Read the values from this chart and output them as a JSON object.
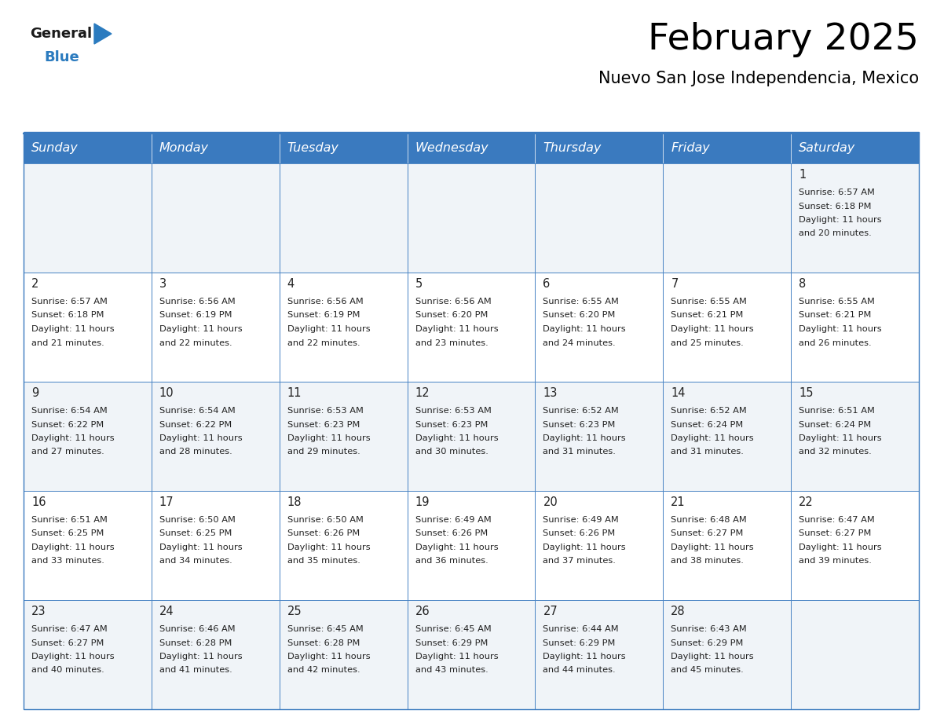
{
  "title": "February 2025",
  "subtitle": "Nuevo San Jose Independencia, Mexico",
  "header_color": "#3a7abf",
  "header_text_color": "#ffffff",
  "cell_bg_even": "#f0f4f8",
  "cell_bg_odd": "#ffffff",
  "border_color": "#3a7abf",
  "text_color": "#222222",
  "day_headers": [
    "Sunday",
    "Monday",
    "Tuesday",
    "Wednesday",
    "Thursday",
    "Friday",
    "Saturday"
  ],
  "title_fontsize": 34,
  "subtitle_fontsize": 15,
  "header_fontsize": 11.5,
  "cell_fontsize": 8.2,
  "day_num_fontsize": 10.5,
  "logo_general_color": "#1a1a1a",
  "logo_blue_color": "#2b7bbf",
  "logo_triangle_color": "#2b7bbf",
  "calendar": [
    [
      null,
      null,
      null,
      null,
      null,
      null,
      {
        "day": 1,
        "sunrise": "6:57 AM",
        "sunset": "6:18 PM",
        "daylight_line1": "Daylight: 11 hours",
        "daylight_line2": "and 20 minutes."
      }
    ],
    [
      {
        "day": 2,
        "sunrise": "6:57 AM",
        "sunset": "6:18 PM",
        "daylight_line1": "Daylight: 11 hours",
        "daylight_line2": "and 21 minutes."
      },
      {
        "day": 3,
        "sunrise": "6:56 AM",
        "sunset": "6:19 PM",
        "daylight_line1": "Daylight: 11 hours",
        "daylight_line2": "and 22 minutes."
      },
      {
        "day": 4,
        "sunrise": "6:56 AM",
        "sunset": "6:19 PM",
        "daylight_line1": "Daylight: 11 hours",
        "daylight_line2": "and 22 minutes."
      },
      {
        "day": 5,
        "sunrise": "6:56 AM",
        "sunset": "6:20 PM",
        "daylight_line1": "Daylight: 11 hours",
        "daylight_line2": "and 23 minutes."
      },
      {
        "day": 6,
        "sunrise": "6:55 AM",
        "sunset": "6:20 PM",
        "daylight_line1": "Daylight: 11 hours",
        "daylight_line2": "and 24 minutes."
      },
      {
        "day": 7,
        "sunrise": "6:55 AM",
        "sunset": "6:21 PM",
        "daylight_line1": "Daylight: 11 hours",
        "daylight_line2": "and 25 minutes."
      },
      {
        "day": 8,
        "sunrise": "6:55 AM",
        "sunset": "6:21 PM",
        "daylight_line1": "Daylight: 11 hours",
        "daylight_line2": "and 26 minutes."
      }
    ],
    [
      {
        "day": 9,
        "sunrise": "6:54 AM",
        "sunset": "6:22 PM",
        "daylight_line1": "Daylight: 11 hours",
        "daylight_line2": "and 27 minutes."
      },
      {
        "day": 10,
        "sunrise": "6:54 AM",
        "sunset": "6:22 PM",
        "daylight_line1": "Daylight: 11 hours",
        "daylight_line2": "and 28 minutes."
      },
      {
        "day": 11,
        "sunrise": "6:53 AM",
        "sunset": "6:23 PM",
        "daylight_line1": "Daylight: 11 hours",
        "daylight_line2": "and 29 minutes."
      },
      {
        "day": 12,
        "sunrise": "6:53 AM",
        "sunset": "6:23 PM",
        "daylight_line1": "Daylight: 11 hours",
        "daylight_line2": "and 30 minutes."
      },
      {
        "day": 13,
        "sunrise": "6:52 AM",
        "sunset": "6:23 PM",
        "daylight_line1": "Daylight: 11 hours",
        "daylight_line2": "and 31 minutes."
      },
      {
        "day": 14,
        "sunrise": "6:52 AM",
        "sunset": "6:24 PM",
        "daylight_line1": "Daylight: 11 hours",
        "daylight_line2": "and 31 minutes."
      },
      {
        "day": 15,
        "sunrise": "6:51 AM",
        "sunset": "6:24 PM",
        "daylight_line1": "Daylight: 11 hours",
        "daylight_line2": "and 32 minutes."
      }
    ],
    [
      {
        "day": 16,
        "sunrise": "6:51 AM",
        "sunset": "6:25 PM",
        "daylight_line1": "Daylight: 11 hours",
        "daylight_line2": "and 33 minutes."
      },
      {
        "day": 17,
        "sunrise": "6:50 AM",
        "sunset": "6:25 PM",
        "daylight_line1": "Daylight: 11 hours",
        "daylight_line2": "and 34 minutes."
      },
      {
        "day": 18,
        "sunrise": "6:50 AM",
        "sunset": "6:26 PM",
        "daylight_line1": "Daylight: 11 hours",
        "daylight_line2": "and 35 minutes."
      },
      {
        "day": 19,
        "sunrise": "6:49 AM",
        "sunset": "6:26 PM",
        "daylight_line1": "Daylight: 11 hours",
        "daylight_line2": "and 36 minutes."
      },
      {
        "day": 20,
        "sunrise": "6:49 AM",
        "sunset": "6:26 PM",
        "daylight_line1": "Daylight: 11 hours",
        "daylight_line2": "and 37 minutes."
      },
      {
        "day": 21,
        "sunrise": "6:48 AM",
        "sunset": "6:27 PM",
        "daylight_line1": "Daylight: 11 hours",
        "daylight_line2": "and 38 minutes."
      },
      {
        "day": 22,
        "sunrise": "6:47 AM",
        "sunset": "6:27 PM",
        "daylight_line1": "Daylight: 11 hours",
        "daylight_line2": "and 39 minutes."
      }
    ],
    [
      {
        "day": 23,
        "sunrise": "6:47 AM",
        "sunset": "6:27 PM",
        "daylight_line1": "Daylight: 11 hours",
        "daylight_line2": "and 40 minutes."
      },
      {
        "day": 24,
        "sunrise": "6:46 AM",
        "sunset": "6:28 PM",
        "daylight_line1": "Daylight: 11 hours",
        "daylight_line2": "and 41 minutes."
      },
      {
        "day": 25,
        "sunrise": "6:45 AM",
        "sunset": "6:28 PM",
        "daylight_line1": "Daylight: 11 hours",
        "daylight_line2": "and 42 minutes."
      },
      {
        "day": 26,
        "sunrise": "6:45 AM",
        "sunset": "6:29 PM",
        "daylight_line1": "Daylight: 11 hours",
        "daylight_line2": "and 43 minutes."
      },
      {
        "day": 27,
        "sunrise": "6:44 AM",
        "sunset": "6:29 PM",
        "daylight_line1": "Daylight: 11 hours",
        "daylight_line2": "and 44 minutes."
      },
      {
        "day": 28,
        "sunrise": "6:43 AM",
        "sunset": "6:29 PM",
        "daylight_line1": "Daylight: 11 hours",
        "daylight_line2": "and 45 minutes."
      },
      null
    ]
  ]
}
